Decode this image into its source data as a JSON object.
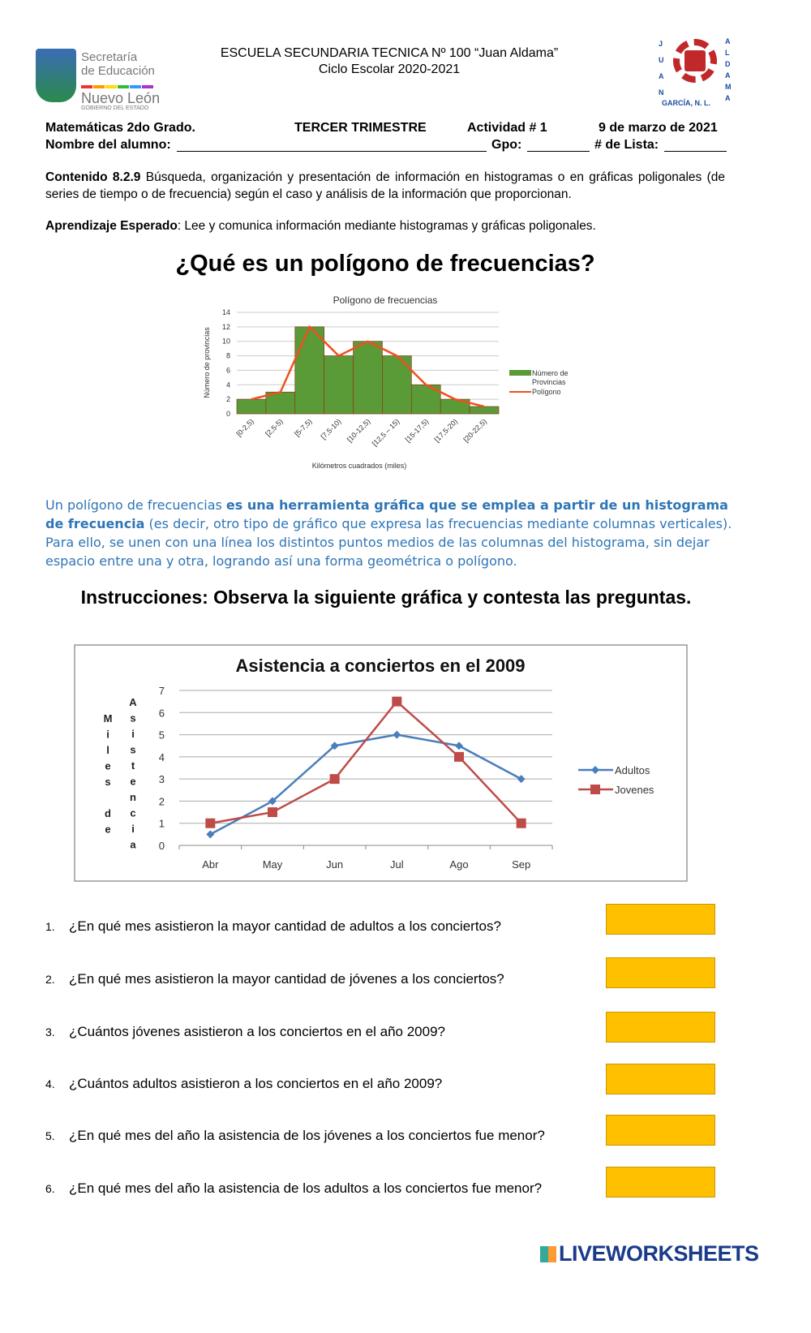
{
  "header": {
    "logo_left": {
      "line1": "Secretaría",
      "line2": "de Educación",
      "line3": "Nuevo León",
      "line4": "GOBIERNO DEL ESTADO"
    },
    "school": "ESCUELA SECUNDARIA TECNICA Nº 100 “Juan Aldama”",
    "cycle": "Ciclo Escolar 2020-2021",
    "logo_right": {
      "left_letters": "JUAN",
      "right_letters": "ALDAMA",
      "bottom": "GARCÍA, N. L."
    }
  },
  "info": {
    "subject": "Matemáticas 2do Grado.",
    "term": "TERCER TRIMESTRE",
    "activity": "Actividad # 1",
    "date": "9 de marzo de 2021",
    "name_label": "Nombre del alumno:",
    "group_label": "Gpo:",
    "list_label": "# de Lista:"
  },
  "contenido": {
    "label": "Contenido 8.2.9",
    "text": " Búsqueda, organización y presentación de información en histogramas o en gráficas poligonales (de series de tiempo o de frecuencia) según el caso y análisis de la información que proporcionan."
  },
  "aprendizaje": {
    "label": "Aprendizaje Esperado",
    "text": ": Lee y comunica información mediante histogramas y gráficas poligonales."
  },
  "main_title": "¿Qué es un polígono de frecuencias?",
  "definition": {
    "p1": "Un polígono de frecuencias ",
    "b1": "es una herramienta gráfica que se emplea a partir de un histograma de frecuencia",
    "p2": " (es decir, otro tipo de gráfico que expresa las frecuencias mediante columnas verticales). Para ello, se unen con una línea los distintos puntos medios de las columnas del histograma, sin dejar espacio entre una y otra, logrando así una forma geométrica o polígono."
  },
  "instructions": "Instrucciones: Observa la siguiente gráfica y contesta las preguntas.",
  "chart_data": [
    {
      "type": "bar",
      "title": "Polígono de frecuencias",
      "xlabel": "Kilómetros cuadrados (miles)",
      "ylabel": "Número de provincias",
      "categories": [
        "[0-2,5)",
        "[2,5-5)",
        "[5-7,5)",
        "[7,5-10)",
        "[10-12,5)",
        "[12,5 – 15)",
        "[15-17,5)",
        "[17,5-20)",
        "[20-22,5)"
      ],
      "series": [
        {
          "name": "Número de Provincias",
          "type": "bar",
          "values": [
            2,
            3,
            12,
            8,
            10,
            8,
            4,
            2,
            1
          ],
          "color": "#5a9a37"
        },
        {
          "name": "Polígono",
          "type": "line",
          "values": [
            2,
            3,
            12,
            8,
            10,
            8,
            4,
            2,
            1
          ],
          "color": "#f0501e"
        }
      ],
      "ylim": [
        0,
        14
      ],
      "yticks": [
        0,
        2,
        4,
        6,
        8,
        10,
        12,
        14
      ],
      "grid": true,
      "legend": "right"
    },
    {
      "type": "line",
      "title": "Asistencia a conciertos en el 2009",
      "ylabel_left": "Miles de",
      "ylabel_right": "Asistencia",
      "categories": [
        "Abr",
        "May",
        "Jun",
        "Jul",
        "Ago",
        "Sep"
      ],
      "series": [
        {
          "name": "Adultos",
          "values": [
            0.5,
            2,
            4.5,
            5,
            4.5,
            3
          ],
          "color": "#4a7ebb",
          "marker": "diamond"
        },
        {
          "name": "Jovenes",
          "values": [
            1,
            1.5,
            3,
            6.5,
            4,
            1
          ],
          "color": "#be4b48",
          "marker": "square"
        }
      ],
      "ylim": [
        0,
        7
      ],
      "yticks": [
        0,
        1,
        2,
        3,
        4,
        5,
        6,
        7
      ],
      "grid": true,
      "legend": "right"
    }
  ],
  "questions": [
    {
      "n": "1.",
      "text": "¿En qué mes asistieron la mayor cantidad de adultos a los conciertos?"
    },
    {
      "n": "2.",
      "text": "¿En qué mes asistieron la mayor cantidad de jóvenes a los conciertos?"
    },
    {
      "n": "3.",
      "text": "¿Cuántos jóvenes asistieron a los conciertos en el año 2009?"
    },
    {
      "n": "4.",
      "text": "¿Cuántos adultos asistieron a los conciertos en el año 2009?"
    },
    {
      "n": "5.",
      "text": "¿En qué mes del año la asistencia de los jóvenes a los conciertos fue menor?"
    },
    {
      "n": "6.",
      "text": "¿En qué mes del año la asistencia de los adultos a los conciertos fue menor?"
    }
  ],
  "answer_color": "#ffc000",
  "footer": {
    "brand": "LIVEWORKSHEETS"
  }
}
